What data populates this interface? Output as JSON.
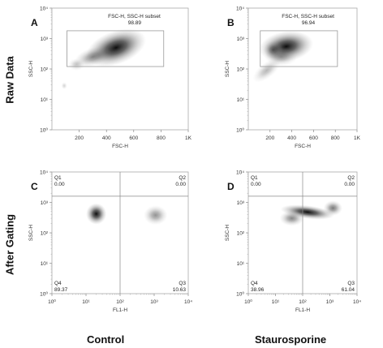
{
  "row_labels": [
    "Raw Data",
    "After Gating"
  ],
  "col_labels": [
    "Control",
    "Staurosporine"
  ],
  "chart_data": [
    {
      "id": "A",
      "type": "density-scatter",
      "xlabel": "FSC-H",
      "ylabel": "SSC-H",
      "xscale": "linear",
      "yscale": "log",
      "xlim": [
        0,
        1000
      ],
      "ylim": [
        1,
        10000
      ],
      "xticks": [
        "200",
        "400",
        "600",
        "800",
        "1K"
      ],
      "yticks": [
        "10⁰",
        "10¹",
        "10²",
        "10³",
        "10⁴"
      ],
      "gate": {
        "label": "FSC-H, SSC-H subset",
        "value": "98.89",
        "x": [
          110,
          820
        ],
        "y": [
          120,
          1800
        ]
      },
      "density": [
        {
          "x": 470,
          "y": 500,
          "sx": 230,
          "sy": 0.55,
          "a": 1.0,
          "rot": -0.35
        },
        {
          "x": 300,
          "y": 250,
          "sx": 140,
          "sy": 0.3,
          "a": 0.45,
          "rot": -0.3
        },
        {
          "x": 180,
          "y": 140,
          "sx": 60,
          "sy": 0.2,
          "a": 0.25,
          "rot": 0
        },
        {
          "x": 90,
          "y": 28,
          "sx": 22,
          "sy": 0.12,
          "a": 0.18,
          "rot": 0
        }
      ]
    },
    {
      "id": "B",
      "type": "density-scatter",
      "xlabel": "FSC-H",
      "ylabel": "SSC-H",
      "xscale": "linear",
      "yscale": "log",
      "xlim": [
        0,
        1000
      ],
      "ylim": [
        1,
        10000
      ],
      "xticks": [
        "200",
        "400",
        "600",
        "800",
        "1K"
      ],
      "yticks": [
        "10⁰",
        "10¹",
        "10²",
        "10³",
        "10⁴"
      ],
      "gate": {
        "label": "FSC-H, SSC-H subset",
        "value": "96.94",
        "x": [
          110,
          820
        ],
        "y": [
          120,
          1800
        ]
      },
      "density": [
        {
          "x": 350,
          "y": 550,
          "sx": 250,
          "sy": 0.5,
          "a": 1.0,
          "rot": -0.15
        },
        {
          "x": 230,
          "y": 420,
          "sx": 90,
          "sy": 0.3,
          "a": 0.55,
          "rot": 0
        },
        {
          "x": 170,
          "y": 90,
          "sx": 70,
          "sy": 0.55,
          "a": 0.3,
          "rot": 0.9
        },
        {
          "x": 300,
          "y": 250,
          "sx": 150,
          "sy": 0.3,
          "a": 0.35,
          "rot": 0
        }
      ]
    },
    {
      "id": "C",
      "type": "density-scatter",
      "xlabel": "FL1-H",
      "ylabel": "SSC-H",
      "xscale": "log",
      "yscale": "log",
      "xlim": [
        1,
        10000
      ],
      "ylim": [
        1,
        10000
      ],
      "xticks": [
        "10⁰",
        "10¹",
        "10²",
        "10³",
        "10⁴"
      ],
      "yticks": [
        "10⁰",
        "10¹",
        "10²",
        "10³",
        "10⁴"
      ],
      "quadrants": {
        "x": 100,
        "y": 1600,
        "labels": [
          {
            "name": "Q1",
            "value": "0.00"
          },
          {
            "name": "Q2",
            "value": "0.00"
          },
          {
            "name": "Q4",
            "value": "89.37"
          },
          {
            "name": "Q3",
            "value": "10.63"
          }
        ]
      },
      "density": [
        {
          "x": 20,
          "y": 420,
          "sx": 0.3,
          "sy": 0.35,
          "a": 1.0,
          "rot": 0
        },
        {
          "x": 1100,
          "y": 380,
          "sx": 0.35,
          "sy": 0.32,
          "a": 0.45,
          "rot": 0
        }
      ]
    },
    {
      "id": "D",
      "type": "density-scatter",
      "xlabel": "FL1-H",
      "ylabel": "SSC-H",
      "xscale": "log",
      "yscale": "log",
      "xlim": [
        1,
        10000
      ],
      "ylim": [
        1,
        10000
      ],
      "xticks": [
        "10⁰",
        "10¹",
        "10²",
        "10³",
        "10⁴"
      ],
      "yticks": [
        "10⁰",
        "10¹",
        "10²",
        "10³",
        "10⁴"
      ],
      "quadrants": {
        "x": 100,
        "y": 1600,
        "labels": [
          {
            "name": "Q1",
            "value": "0.00"
          },
          {
            "name": "Q2",
            "value": "0.00"
          },
          {
            "name": "Q4",
            "value": "38.96"
          },
          {
            "name": "Q3",
            "value": "61.04"
          }
        ]
      },
      "density": [
        {
          "x": 150,
          "y": 480,
          "sx": 1.0,
          "sy": 0.22,
          "a": 1.0,
          "rot": 0.12
        },
        {
          "x": 40,
          "y": 300,
          "sx": 0.45,
          "sy": 0.25,
          "a": 0.5,
          "rot": 0
        },
        {
          "x": 1300,
          "y": 650,
          "sx": 0.35,
          "sy": 0.25,
          "a": 0.55,
          "rot": 0
        }
      ]
    }
  ]
}
